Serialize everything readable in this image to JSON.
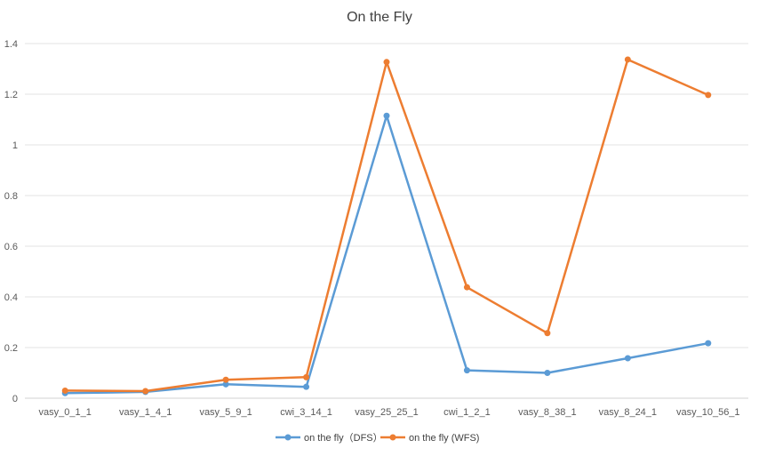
{
  "chart_data": {
    "type": "line",
    "title": "On the Fly",
    "xlabel": "",
    "ylabel": "",
    "categories": [
      "vasy_0_1_1",
      "vasy_1_4_1",
      "vasy_5_9_1",
      "cwi_3_14_1",
      "vasy_25_25_1",
      "cwi_1_2_1",
      "vasy_8_38_1",
      "vasy_8_24_1",
      "vasy_10_56_1"
    ],
    "ylim": [
      0,
      1.4
    ],
    "yticks": [
      0,
      0.2,
      0.4,
      0.6,
      0.8,
      1,
      1.2,
      1.4
    ],
    "ytick_labels": [
      "0",
      "0.2",
      "0.4",
      "0.6",
      "0.8",
      "1",
      "1.2",
      "1.4"
    ],
    "grid": true,
    "legend_position": "bottom",
    "series": [
      {
        "name": "on the fly（DFS）",
        "color": "#5B9BD5",
        "values": [
          0.02,
          0.025,
          0.055,
          0.045,
          1.115,
          0.11,
          0.1,
          0.158,
          0.217
        ]
      },
      {
        "name": "on the fly (WFS)",
        "color": "#ED7D31",
        "values": [
          0.03,
          0.028,
          0.073,
          0.083,
          1.327,
          0.438,
          0.257,
          1.337,
          1.197
        ]
      }
    ]
  }
}
